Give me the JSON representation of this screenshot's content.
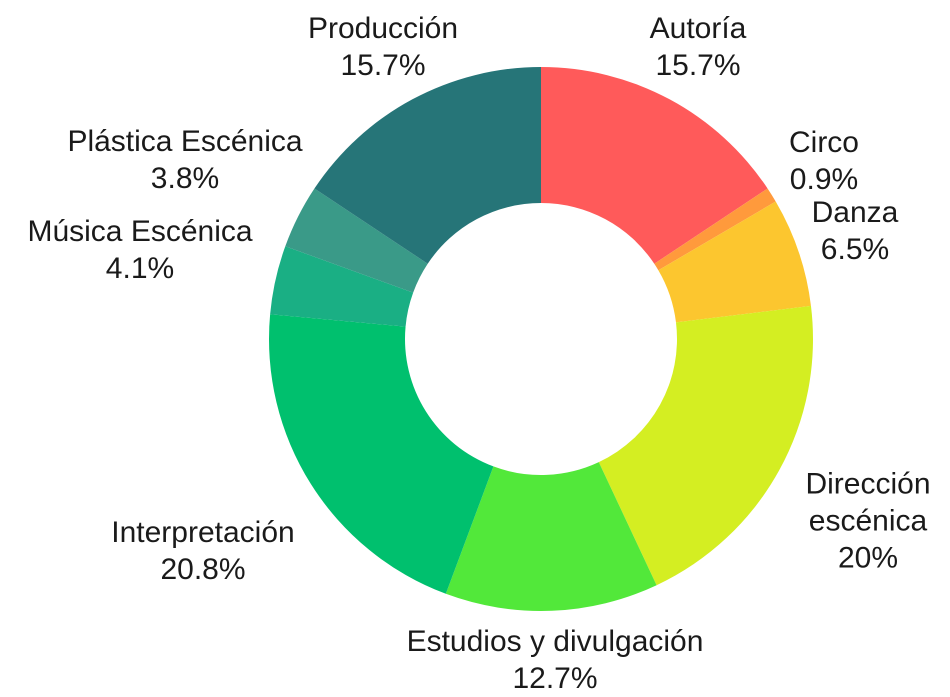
{
  "chart_data": {
    "type": "donut",
    "categories": [
      "Autoría",
      "Circo",
      "Danza",
      "Dirección escénica",
      "Estudios y divulgación",
      "Interpretación",
      "Música Escénica",
      "Plástica Escénica",
      "Producción"
    ],
    "values": [
      15.7,
      0.9,
      6.5,
      20,
      12.7,
      20.8,
      4.1,
      3.8,
      15.7
    ],
    "value_labels": [
      "15.7%",
      "0.9%",
      "6.5%",
      "20%",
      "12.7%",
      "20.8%",
      "4.1%",
      "3.8%",
      "15.7%"
    ],
    "colors": [
      "#ff5a5a",
      "#ff9a3c",
      "#fcc62f",
      "#d4ee22",
      "#52e83a",
      "#00c06e",
      "#1aaf84",
      "#3a9a88",
      "#267578"
    ]
  }
}
